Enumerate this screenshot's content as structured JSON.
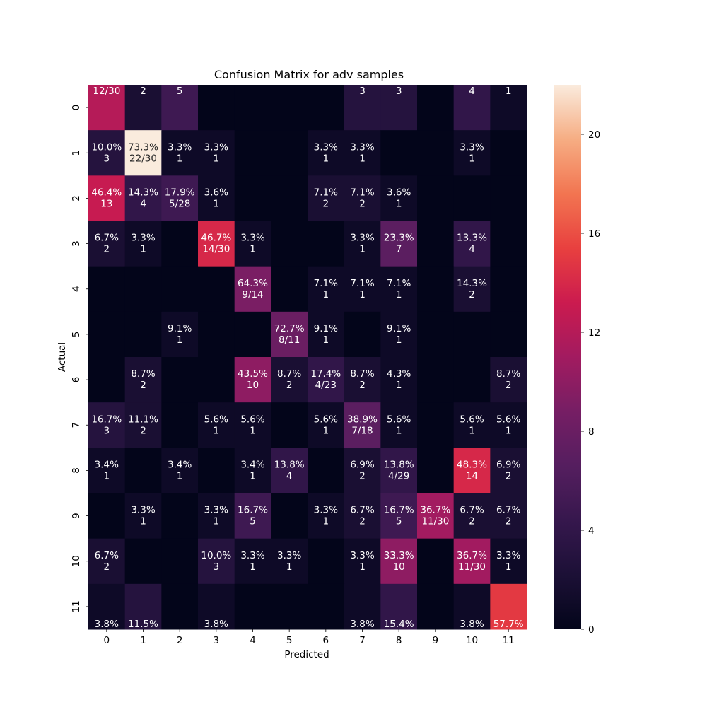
{
  "chart_data": {
    "type": "heatmap",
    "title": "Confusion Matrix for adv samples",
    "xlabel": "Predicted",
    "ylabel": "Actual",
    "x_categories": [
      "0",
      "1",
      "2",
      "3",
      "4",
      "5",
      "6",
      "7",
      "8",
      "9",
      "10",
      "11"
    ],
    "y_categories": [
      "0",
      "1",
      "2",
      "3",
      "4",
      "5",
      "6",
      "7",
      "8",
      "9",
      "10",
      "11"
    ],
    "counts": [
      [
        12,
        2,
        5,
        0,
        0,
        0,
        0,
        3,
        3,
        0,
        4,
        1
      ],
      [
        3,
        22,
        1,
        1,
        0,
        0,
        1,
        1,
        0,
        0,
        1,
        0
      ],
      [
        13,
        4,
        5,
        1,
        0,
        0,
        2,
        2,
        1,
        0,
        0,
        0
      ],
      [
        2,
        1,
        0,
        14,
        1,
        0,
        0,
        1,
        7,
        0,
        4,
        0
      ],
      [
        0,
        0,
        0,
        0,
        9,
        0,
        1,
        1,
        1,
        0,
        2,
        0
      ],
      [
        0,
        0,
        1,
        0,
        0,
        8,
        1,
        0,
        1,
        0,
        0,
        0
      ],
      [
        0,
        2,
        0,
        0,
        10,
        2,
        4,
        2,
        1,
        0,
        0,
        2
      ],
      [
        3,
        2,
        0,
        1,
        1,
        0,
        1,
        7,
        1,
        0,
        1,
        1
      ],
      [
        1,
        0,
        1,
        0,
        1,
        4,
        0,
        2,
        4,
        0,
        14,
        2
      ],
      [
        0,
        1,
        0,
        1,
        5,
        0,
        1,
        2,
        5,
        11,
        2,
        2
      ],
      [
        2,
        0,
        0,
        3,
        1,
        1,
        0,
        1,
        10,
        0,
        11,
        1
      ],
      [
        1,
        3,
        0,
        1,
        0,
        0,
        0,
        1,
        4,
        0,
        1,
        15
      ]
    ],
    "cell_labels": [
      [
        [
          "12/30"
        ],
        [
          "2"
        ],
        [
          "5"
        ],
        [],
        [],
        [],
        [],
        [
          "3"
        ],
        [
          "3"
        ],
        [],
        [
          "4"
        ],
        [
          "1"
        ]
      ],
      [
        [
          "10.0%",
          "3"
        ],
        [
          "73.3%",
          "22/30"
        ],
        [
          "3.3%",
          "1"
        ],
        [
          "3.3%",
          "1"
        ],
        [],
        [],
        [
          "3.3%",
          "1"
        ],
        [
          "3.3%",
          "1"
        ],
        [],
        [],
        [
          "3.3%",
          "1"
        ],
        []
      ],
      [
        [
          "46.4%",
          "13"
        ],
        [
          "14.3%",
          "4"
        ],
        [
          "17.9%",
          "5/28"
        ],
        [
          "3.6%",
          "1"
        ],
        [],
        [],
        [
          "7.1%",
          "2"
        ],
        [
          "7.1%",
          "2"
        ],
        [
          "3.6%",
          "1"
        ],
        [],
        [],
        []
      ],
      [
        [
          "6.7%",
          "2"
        ],
        [
          "3.3%",
          "1"
        ],
        [],
        [
          "46.7%",
          "14/30"
        ],
        [
          "3.3%",
          "1"
        ],
        [],
        [],
        [
          "3.3%",
          "1"
        ],
        [
          "23.3%",
          "7"
        ],
        [],
        [
          "13.3%",
          "4"
        ],
        []
      ],
      [
        [],
        [],
        [],
        [],
        [
          "64.3%",
          "9/14"
        ],
        [],
        [
          "7.1%",
          "1"
        ],
        [
          "7.1%",
          "1"
        ],
        [
          "7.1%",
          "1"
        ],
        [],
        [
          "14.3%",
          "2"
        ],
        []
      ],
      [
        [],
        [],
        [
          "9.1%",
          "1"
        ],
        [],
        [],
        [
          "72.7%",
          "8/11"
        ],
        [
          "9.1%",
          "1"
        ],
        [],
        [
          "9.1%",
          "1"
        ],
        [],
        [],
        []
      ],
      [
        [],
        [
          "8.7%",
          "2"
        ],
        [],
        [],
        [
          "43.5%",
          "10"
        ],
        [
          "8.7%",
          "2"
        ],
        [
          "17.4%",
          "4/23"
        ],
        [
          "8.7%",
          "2"
        ],
        [
          "4.3%",
          "1"
        ],
        [],
        [],
        [
          "8.7%",
          "2"
        ]
      ],
      [
        [
          "16.7%",
          "3"
        ],
        [
          "11.1%",
          "2"
        ],
        [],
        [
          "5.6%",
          "1"
        ],
        [
          "5.6%",
          "1"
        ],
        [],
        [
          "5.6%",
          "1"
        ],
        [
          "38.9%",
          "7/18"
        ],
        [
          "5.6%",
          "1"
        ],
        [],
        [
          "5.6%",
          "1"
        ],
        [
          "5.6%",
          "1"
        ]
      ],
      [
        [
          "3.4%",
          "1"
        ],
        [],
        [
          "3.4%",
          "1"
        ],
        [],
        [
          "3.4%",
          "1"
        ],
        [
          "13.8%",
          "4"
        ],
        [],
        [
          "6.9%",
          "2"
        ],
        [
          "13.8%",
          "4/29"
        ],
        [],
        [
          "48.3%",
          "14"
        ],
        [
          "6.9%",
          "2"
        ]
      ],
      [
        [],
        [
          "3.3%",
          "1"
        ],
        [],
        [
          "3.3%",
          "1"
        ],
        [
          "16.7%",
          "5"
        ],
        [],
        [
          "3.3%",
          "1"
        ],
        [
          "6.7%",
          "2"
        ],
        [
          "16.7%",
          "5"
        ],
        [
          "36.7%",
          "11/30"
        ],
        [
          "6.7%",
          "2"
        ],
        [
          "6.7%",
          "2"
        ]
      ],
      [
        [
          "6.7%",
          "2"
        ],
        [],
        [],
        [
          "10.0%",
          "3"
        ],
        [
          "3.3%",
          "1"
        ],
        [
          "3.3%",
          "1"
        ],
        [],
        [
          "3.3%",
          "1"
        ],
        [
          "33.3%",
          "10"
        ],
        [],
        [
          "36.7%",
          "11/30"
        ],
        [
          "3.3%",
          "1"
        ]
      ],
      [
        [
          "3.8%"
        ],
        [
          "11.5%"
        ],
        [],
        [
          "3.8%"
        ],
        [],
        [],
        [],
        [
          "3.8%"
        ],
        [
          "15.4%"
        ],
        [],
        [
          "3.8%"
        ],
        [
          "57.7%"
        ]
      ]
    ],
    "colorbar": {
      "min": 0,
      "max": 22,
      "ticks": [
        "0",
        "4",
        "8",
        "12",
        "16",
        "20"
      ]
    },
    "colormap": "rocket"
  }
}
